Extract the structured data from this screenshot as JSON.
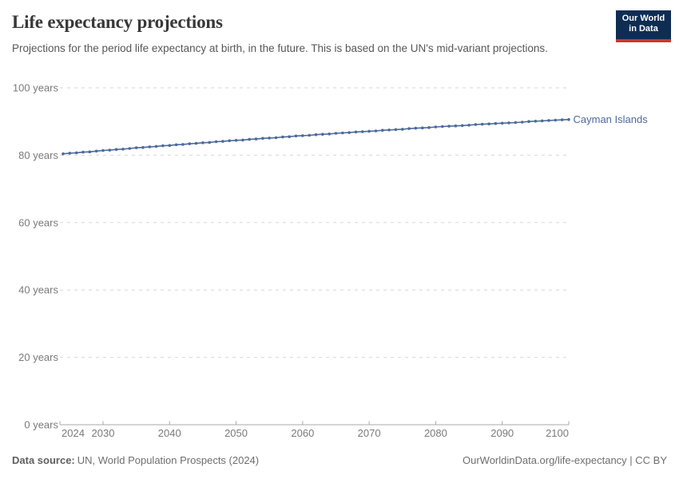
{
  "header": {
    "title": "Life expectancy projections",
    "subtitle": "Projections for the period life expectancy at birth, in the future. This is based on the UN's mid-variant projections.",
    "logo_line1": "Our World",
    "logo_line2": "in Data"
  },
  "footer": {
    "datasource_label": "Data source:",
    "datasource_value": "UN, World Population Prospects (2024)",
    "attribution": "OurWorldinData.org/life-expectancy | CC BY"
  },
  "colors": {
    "series_blue": "#4c6a9c",
    "grid": "#d7d7d7",
    "axis": "#a8a8a8",
    "tick_label": "#7a7a7a",
    "logo_navy": "#0f2d52",
    "logo_red": "#d0342f"
  },
  "chart_data": {
    "type": "line",
    "title": "Life expectancy projections",
    "xlabel": "",
    "ylabel": "",
    "xlim": [
      2024,
      2100
    ],
    "ylim": [
      0,
      100
    ],
    "grid": "horizontal-dashed",
    "legend_position": "end-of-line-label",
    "x_ticks": [
      2024,
      2030,
      2040,
      2050,
      2060,
      2070,
      2080,
      2090,
      2100
    ],
    "y_ticks": [
      0,
      20,
      40,
      60,
      80,
      100
    ],
    "y_tick_suffix": " years",
    "series": [
      {
        "name": "Cayman Islands",
        "color": "#4c6a9c",
        "marker": "circle-every-year",
        "years": [
          2024,
          2025,
          2026,
          2027,
          2028,
          2029,
          2030,
          2031,
          2032,
          2033,
          2034,
          2035,
          2036,
          2037,
          2038,
          2039,
          2040,
          2041,
          2042,
          2043,
          2044,
          2045,
          2046,
          2047,
          2048,
          2049,
          2050,
          2051,
          2052,
          2053,
          2054,
          2055,
          2056,
          2057,
          2058,
          2059,
          2060,
          2061,
          2062,
          2063,
          2064,
          2065,
          2066,
          2067,
          2068,
          2069,
          2070,
          2071,
          2072,
          2073,
          2074,
          2075,
          2076,
          2077,
          2078,
          2079,
          2080,
          2081,
          2082,
          2083,
          2084,
          2085,
          2086,
          2087,
          2088,
          2089,
          2090,
          2091,
          2092,
          2093,
          2094,
          2095,
          2096,
          2097,
          2098,
          2099,
          2100
        ],
        "values": [
          80.4,
          80.6,
          80.7,
          80.9,
          81.0,
          81.2,
          81.4,
          81.5,
          81.7,
          81.8,
          82.0,
          82.2,
          82.3,
          82.5,
          82.6,
          82.8,
          82.9,
          83.1,
          83.2,
          83.4,
          83.5,
          83.7,
          83.8,
          84.0,
          84.1,
          84.3,
          84.4,
          84.5,
          84.7,
          84.8,
          85.0,
          85.1,
          85.2,
          85.4,
          85.5,
          85.7,
          85.8,
          85.9,
          86.1,
          86.2,
          86.3,
          86.5,
          86.6,
          86.7,
          86.9,
          87.0,
          87.1,
          87.2,
          87.4,
          87.5,
          87.6,
          87.7,
          87.9,
          88.0,
          88.1,
          88.2,
          88.4,
          88.5,
          88.6,
          88.7,
          88.8,
          88.9,
          89.1,
          89.2,
          89.3,
          89.4,
          89.5,
          89.6,
          89.7,
          89.8,
          90.0,
          90.1,
          90.2,
          90.3,
          90.4,
          90.5,
          90.6
        ]
      }
    ]
  }
}
